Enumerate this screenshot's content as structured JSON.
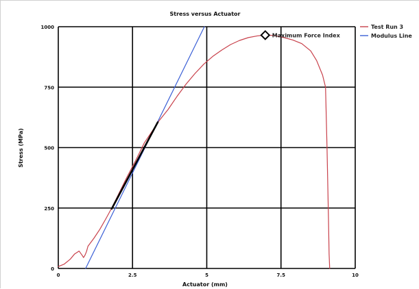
{
  "chart_data": {
    "type": "line",
    "title": "Stress versus Actuator",
    "xlabel": "Actuator (mm)",
    "ylabel": "Stress (MPa)",
    "xlim": [
      0,
      10
    ],
    "ylim": [
      0,
      1000
    ],
    "x_ticks": [
      0,
      2.5,
      5,
      7.5,
      10
    ],
    "x_tick_labels": [
      "0",
      "2.5",
      "5",
      "7.5",
      "10"
    ],
    "y_ticks": [
      0,
      250,
      500,
      750,
      1000
    ],
    "y_tick_labels": [
      "0",
      "250",
      "500",
      "750",
      "1000"
    ],
    "grid": true,
    "legend_position": "outside-right",
    "series": [
      {
        "name": "Test Run 3",
        "color": "#c8404a",
        "x": [
          0,
          0.2,
          0.4,
          0.55,
          0.7,
          0.8,
          0.85,
          0.9,
          0.95,
          1.0,
          1.2,
          1.4,
          1.6,
          1.8,
          2.0,
          2.3,
          2.6,
          2.9,
          3.2,
          3.4,
          3.7,
          4.0,
          4.3,
          4.6,
          4.9,
          5.2,
          5.5,
          5.8,
          6.1,
          6.4,
          6.7,
          7.0,
          7.3,
          7.6,
          7.9,
          8.2,
          8.5,
          8.7,
          8.9,
          9.0,
          9.05,
          9.1,
          9.12,
          9.14
        ],
        "y": [
          8,
          18,
          38,
          60,
          72,
          55,
          45,
          55,
          70,
          92,
          125,
          162,
          205,
          250,
          300,
          375,
          445,
          520,
          575,
          612,
          658,
          712,
          762,
          806,
          845,
          877,
          903,
          926,
          943,
          955,
          962,
          966,
          963,
          955,
          945,
          930,
          900,
          860,
          800,
          750,
          500,
          200,
          60,
          0
        ]
      },
      {
        "name": "Modulus Line",
        "color": "#3a5fd6",
        "x": [
          0.92,
          4.92
        ],
        "y": [
          0,
          1000
        ]
      },
      {
        "name": "",
        "color": "#000000",
        "x": [
          1.8,
          3.35
        ],
        "y": [
          247,
          605
        ]
      }
    ],
    "annotations": [
      {
        "label": "Maximum Force Index",
        "x": 6.97,
        "y": 965
      }
    ]
  }
}
